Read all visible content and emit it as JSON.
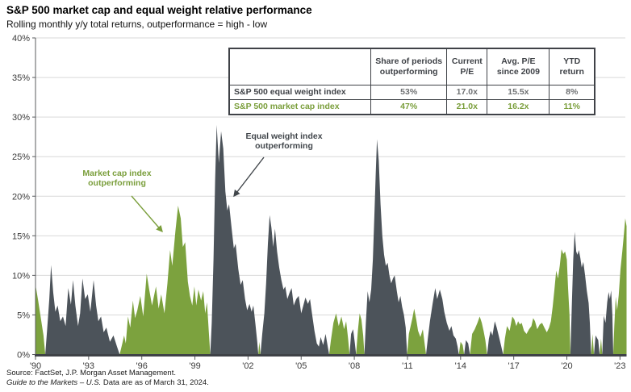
{
  "title": "S&P 500 market cap and equal weight relative performance",
  "subtitle": "Rolling monthly y/y total returns, outperformance = high - low",
  "colors": {
    "market_cap_green": "#7ca23e",
    "equal_weight_dark": "#4c535a",
    "gridline": "#d9d9d9",
    "axis_dark": "#3f4247",
    "tick_text": "#3b3b3b"
  },
  "table": {
    "headers": [
      "",
      "Share of periods outperforming",
      "Current P/E",
      "Avg. P/E since 2009",
      "YTD return"
    ],
    "rows": [
      {
        "label": "S&P 500 equal weight index",
        "values": [
          "53%",
          "17.0x",
          "15.5x",
          "8%"
        ],
        "style": "dark"
      },
      {
        "label": "S&P 500 market cap index",
        "values": [
          "47%",
          "21.0x",
          "16.2x",
          "11%"
        ],
        "style": "green"
      }
    ]
  },
  "annotations": {
    "market_cap": {
      "line1": "Market cap index",
      "line2": "outperforming"
    },
    "equal_weight": {
      "line1": "Equal weight index",
      "line2": "outperforming"
    }
  },
  "footer": {
    "line1": "Source: FactSet, J.P. Morgan Asset Management.",
    "line2_italic": "Guide to the Markets – U.S.",
    "line2_rest": " Data are as of March 31, 2024."
  },
  "chart_data": {
    "type": "area",
    "title": "S&P 500 market cap and equal weight relative performance",
    "ylabel": "Outperformance (high - low), rolling monthly y/y total return",
    "ylim": [
      0,
      40
    ],
    "grid": true,
    "y_ticks": [
      0,
      5,
      10,
      15,
      20,
      25,
      30,
      35,
      40
    ],
    "y_tick_suffix": "%",
    "x_ticks": [
      {
        "year": 1990,
        "label": "'90"
      },
      {
        "year": 1993,
        "label": "'93"
      },
      {
        "year": 1996,
        "label": "'96"
      },
      {
        "year": 1999,
        "label": "'99"
      },
      {
        "year": 2002,
        "label": "'02"
      },
      {
        "year": 2005,
        "label": "'05"
      },
      {
        "year": 2008,
        "label": "'08"
      },
      {
        "year": 2011,
        "label": "'11"
      },
      {
        "year": 2014,
        "label": "'14"
      },
      {
        "year": 2017,
        "label": "'17"
      },
      {
        "year": 2020,
        "label": "'20"
      },
      {
        "year": 2023,
        "label": "'23"
      }
    ],
    "series": [
      {
        "id": "g",
        "name": "S&P 500 market cap index outperforming",
        "color": "#7ca23e"
      },
      {
        "id": "e",
        "name": "S&P 500 equal weight index outperforming",
        "color": "#4c535a"
      }
    ],
    "points": [
      [
        1990.0,
        8.8,
        "g"
      ],
      [
        1990.15,
        6.8,
        "g"
      ],
      [
        1990.3,
        4.6,
        "g"
      ],
      [
        1990.45,
        2.4,
        "g"
      ],
      [
        1990.55,
        0,
        "g"
      ],
      [
        1990.65,
        3,
        "e"
      ],
      [
        1990.78,
        7,
        "e"
      ],
      [
        1990.88,
        11.3,
        "e"
      ],
      [
        1991.0,
        7.8,
        "e"
      ],
      [
        1991.12,
        5.4,
        "e"
      ],
      [
        1991.25,
        6.2,
        "e"
      ],
      [
        1991.4,
        4.2,
        "e"
      ],
      [
        1991.55,
        4.8,
        "e"
      ],
      [
        1991.7,
        3.6,
        "e"
      ],
      [
        1991.85,
        8.4,
        "e"
      ],
      [
        1992.0,
        6.3,
        "e"
      ],
      [
        1992.12,
        9.4,
        "e"
      ],
      [
        1992.25,
        6.2,
        "e"
      ],
      [
        1992.4,
        3.6,
        "e"
      ],
      [
        1992.52,
        5.2,
        "e"
      ],
      [
        1992.65,
        9.6,
        "e"
      ],
      [
        1992.8,
        7,
        "e"
      ],
      [
        1992.95,
        7.6,
        "e"
      ],
      [
        1993.1,
        5.4,
        "e"
      ],
      [
        1993.28,
        9.4,
        "e"
      ],
      [
        1993.42,
        6.2,
        "e"
      ],
      [
        1993.55,
        4.2,
        "e"
      ],
      [
        1993.7,
        4.8,
        "e"
      ],
      [
        1993.85,
        2.8,
        "e"
      ],
      [
        1994.0,
        3.4,
        "e"
      ],
      [
        1994.2,
        1.6,
        "e"
      ],
      [
        1994.4,
        2.4,
        "e"
      ],
      [
        1994.6,
        1,
        "e"
      ],
      [
        1994.75,
        0,
        "e"
      ],
      [
        1994.9,
        1.4,
        "g"
      ],
      [
        1995.0,
        2.4,
        "g"
      ],
      [
        1995.1,
        1.4,
        "g"
      ],
      [
        1995.22,
        4.8,
        "g"
      ],
      [
        1995.35,
        3.4,
        "g"
      ],
      [
        1995.5,
        6.8,
        "g"
      ],
      [
        1995.62,
        4.6,
        "g"
      ],
      [
        1995.75,
        5.6,
        "g"
      ],
      [
        1995.92,
        7.4,
        "g"
      ],
      [
        1996.08,
        4.8,
        "g"
      ],
      [
        1996.28,
        10.2,
        "g"
      ],
      [
        1996.42,
        8.2,
        "g"
      ],
      [
        1996.58,
        6.2,
        "g"
      ],
      [
        1996.8,
        8.6,
        "g"
      ],
      [
        1996.95,
        5.8,
        "g"
      ],
      [
        1997.1,
        7.6,
        "g"
      ],
      [
        1997.28,
        5.2,
        "g"
      ],
      [
        1997.45,
        9,
        "g"
      ],
      [
        1997.6,
        13.2,
        "g"
      ],
      [
        1997.72,
        11.2,
        "g"
      ],
      [
        1997.9,
        15.6,
        "g"
      ],
      [
        1998.05,
        18.8,
        "g"
      ],
      [
        1998.2,
        17.2,
        "g"
      ],
      [
        1998.32,
        13.6,
        "g"
      ],
      [
        1998.45,
        14.2,
        "g"
      ],
      [
        1998.6,
        9.2,
        "g"
      ],
      [
        1998.72,
        7.4,
        "g"
      ],
      [
        1998.85,
        6.2,
        "g"
      ],
      [
        1998.97,
        8.6,
        "g"
      ],
      [
        1999.08,
        6.2,
        "g"
      ],
      [
        1999.2,
        8.2,
        "g"
      ],
      [
        1999.35,
        6.8,
        "g"
      ],
      [
        1999.47,
        8,
        "g"
      ],
      [
        1999.58,
        5.2,
        "g"
      ],
      [
        1999.68,
        6.6,
        "g"
      ],
      [
        1999.78,
        3,
        "g"
      ],
      [
        1999.87,
        0,
        "g"
      ],
      [
        1999.95,
        4,
        "e"
      ],
      [
        2000.05,
        12,
        "e"
      ],
      [
        2000.14,
        22,
        "e"
      ],
      [
        2000.23,
        29,
        "e"
      ],
      [
        2000.35,
        24.2,
        "e"
      ],
      [
        2000.48,
        28.2,
        "e"
      ],
      [
        2000.6,
        26,
        "e"
      ],
      [
        2000.72,
        20.6,
        "e"
      ],
      [
        2000.83,
        18.2,
        "e"
      ],
      [
        2000.93,
        19,
        "e"
      ],
      [
        2001.08,
        15.8,
        "e"
      ],
      [
        2001.2,
        13.4,
        "e"
      ],
      [
        2001.3,
        14,
        "e"
      ],
      [
        2001.45,
        10.8,
        "e"
      ],
      [
        2001.58,
        8.8,
        "e"
      ],
      [
        2001.7,
        9.4,
        "e"
      ],
      [
        2001.83,
        7,
        "e"
      ],
      [
        2001.95,
        5.6,
        "e"
      ],
      [
        2002.08,
        6.4,
        "e"
      ],
      [
        2002.2,
        5.4,
        "e"
      ],
      [
        2002.3,
        6.2,
        "e"
      ],
      [
        2002.42,
        3.8,
        "e"
      ],
      [
        2002.52,
        1.6,
        "e"
      ],
      [
        2002.58,
        0,
        "e"
      ],
      [
        2002.64,
        1.6,
        "g"
      ],
      [
        2002.7,
        0,
        "g"
      ],
      [
        2002.8,
        2.6,
        "e"
      ],
      [
        2002.92,
        5.2,
        "e"
      ],
      [
        2003.02,
        9,
        "e"
      ],
      [
        2003.12,
        14,
        "e"
      ],
      [
        2003.22,
        17.6,
        "e"
      ],
      [
        2003.32,
        16,
        "e"
      ],
      [
        2003.42,
        13.6,
        "e"
      ],
      [
        2003.52,
        15.9,
        "e"
      ],
      [
        2003.64,
        13,
        "e"
      ],
      [
        2003.76,
        11,
        "e"
      ],
      [
        2003.88,
        9.4,
        "e"
      ],
      [
        2004.0,
        8.2,
        "e"
      ],
      [
        2004.1,
        8.6,
        "e"
      ],
      [
        2004.22,
        7,
        "e"
      ],
      [
        2004.34,
        7.8,
        "e"
      ],
      [
        2004.46,
        8.4,
        "e"
      ],
      [
        2004.58,
        6.2,
        "e"
      ],
      [
        2004.72,
        7,
        "e"
      ],
      [
        2004.86,
        7.4,
        "e"
      ],
      [
        2005.0,
        5.2,
        "e"
      ],
      [
        2005.1,
        6,
        "e"
      ],
      [
        2005.24,
        7.2,
        "e"
      ],
      [
        2005.38,
        6.4,
        "e"
      ],
      [
        2005.5,
        7,
        "e"
      ],
      [
        2005.62,
        5,
        "e"
      ],
      [
        2005.75,
        3,
        "e"
      ],
      [
        2005.88,
        1.4,
        "e"
      ],
      [
        2006.0,
        1,
        "e"
      ],
      [
        2006.1,
        2.2,
        "e"
      ],
      [
        2006.24,
        1.2,
        "e"
      ],
      [
        2006.38,
        2.6,
        "e"
      ],
      [
        2006.5,
        1,
        "e"
      ],
      [
        2006.58,
        0,
        "e"
      ],
      [
        2006.68,
        1.8,
        "g"
      ],
      [
        2006.82,
        4,
        "g"
      ],
      [
        2006.97,
        5.2,
        "g"
      ],
      [
        2007.12,
        3.6,
        "g"
      ],
      [
        2007.27,
        4.8,
        "g"
      ],
      [
        2007.42,
        3.2,
        "g"
      ],
      [
        2007.54,
        4.2,
        "g"
      ],
      [
        2007.65,
        2,
        "g"
      ],
      [
        2007.73,
        0,
        "g"
      ],
      [
        2007.82,
        2.6,
        "e"
      ],
      [
        2007.93,
        3.2,
        "e"
      ],
      [
        2008.03,
        1.4,
        "e"
      ],
      [
        2008.1,
        0,
        "e"
      ],
      [
        2008.2,
        3,
        "g"
      ],
      [
        2008.3,
        5.2,
        "g"
      ],
      [
        2008.4,
        4.4,
        "g"
      ],
      [
        2008.5,
        2.4,
        "g"
      ],
      [
        2008.57,
        0,
        "g"
      ],
      [
        2008.65,
        4,
        "e"
      ],
      [
        2008.75,
        8,
        "e"
      ],
      [
        2008.85,
        6.6,
        "e"
      ],
      [
        2008.95,
        8.2,
        "e"
      ],
      [
        2009.05,
        12,
        "e"
      ],
      [
        2009.14,
        18,
        "e"
      ],
      [
        2009.21,
        23,
        "e"
      ],
      [
        2009.28,
        27.2,
        "e"
      ],
      [
        2009.38,
        24.5,
        "e"
      ],
      [
        2009.48,
        19,
        "e"
      ],
      [
        2009.58,
        15,
        "e"
      ],
      [
        2009.68,
        12.6,
        "e"
      ],
      [
        2009.78,
        11.2,
        "e"
      ],
      [
        2009.88,
        11.6,
        "e"
      ],
      [
        2009.98,
        10,
        "e"
      ],
      [
        2010.08,
        9,
        "e"
      ],
      [
        2010.18,
        9.6,
        "e"
      ],
      [
        2010.28,
        10,
        "e"
      ],
      [
        2010.4,
        8,
        "e"
      ],
      [
        2010.5,
        6.6,
        "e"
      ],
      [
        2010.6,
        7.4,
        "e"
      ],
      [
        2010.7,
        6,
        "e"
      ],
      [
        2010.8,
        5,
        "e"
      ],
      [
        2010.9,
        3.4,
        "e"
      ],
      [
        2010.98,
        0,
        "e"
      ],
      [
        2011.08,
        2.6,
        "g"
      ],
      [
        2011.18,
        3.6,
        "g"
      ],
      [
        2011.28,
        4.6,
        "g"
      ],
      [
        2011.38,
        5.8,
        "g"
      ],
      [
        2011.5,
        4.4,
        "g"
      ],
      [
        2011.6,
        3,
        "g"
      ],
      [
        2011.73,
        2.2,
        "g"
      ],
      [
        2011.87,
        3.2,
        "g"
      ],
      [
        2011.97,
        1.4,
        "g"
      ],
      [
        2012.05,
        0,
        "g"
      ],
      [
        2012.15,
        2,
        "e"
      ],
      [
        2012.27,
        4.2,
        "e"
      ],
      [
        2012.42,
        6.4,
        "e"
      ],
      [
        2012.57,
        8.4,
        "e"
      ],
      [
        2012.68,
        7,
        "e"
      ],
      [
        2012.83,
        8.2,
        "e"
      ],
      [
        2012.97,
        7,
        "e"
      ],
      [
        2013.08,
        5.4,
        "e"
      ],
      [
        2013.22,
        4,
        "e"
      ],
      [
        2013.37,
        3,
        "e"
      ],
      [
        2013.48,
        3.6,
        "e"
      ],
      [
        2013.6,
        2.4,
        "e"
      ],
      [
        2013.73,
        2,
        "e"
      ],
      [
        2013.83,
        1,
        "e"
      ],
      [
        2013.9,
        0,
        "e"
      ],
      [
        2014.0,
        1.6,
        "g"
      ],
      [
        2014.12,
        1.2,
        "g"
      ],
      [
        2014.2,
        0,
        "g"
      ],
      [
        2014.3,
        1.8,
        "e"
      ],
      [
        2014.43,
        1.4,
        "e"
      ],
      [
        2014.53,
        0,
        "e"
      ],
      [
        2014.65,
        2.6,
        "g"
      ],
      [
        2014.8,
        3.2,
        "g"
      ],
      [
        2014.95,
        4,
        "g"
      ],
      [
        2015.08,
        4.8,
        "g"
      ],
      [
        2015.2,
        4,
        "g"
      ],
      [
        2015.3,
        3,
        "g"
      ],
      [
        2015.4,
        1.8,
        "g"
      ],
      [
        2015.5,
        0,
        "g"
      ],
      [
        2015.6,
        2,
        "e"
      ],
      [
        2015.7,
        3,
        "e"
      ],
      [
        2015.8,
        2.4,
        "e"
      ],
      [
        2015.93,
        4.2,
        "e"
      ],
      [
        2016.04,
        3.4,
        "e"
      ],
      [
        2016.15,
        2.4,
        "e"
      ],
      [
        2016.28,
        1.2,
        "e"
      ],
      [
        2016.4,
        0,
        "e"
      ],
      [
        2016.5,
        2,
        "g"
      ],
      [
        2016.62,
        3.6,
        "g"
      ],
      [
        2016.77,
        3,
        "g"
      ],
      [
        2016.92,
        4.8,
        "g"
      ],
      [
        2017.04,
        4.4,
        "g"
      ],
      [
        2017.15,
        3.6,
        "g"
      ],
      [
        2017.25,
        4.2,
        "g"
      ],
      [
        2017.35,
        3.8,
        "g"
      ],
      [
        2017.45,
        4,
        "g"
      ],
      [
        2017.58,
        3,
        "g"
      ],
      [
        2017.72,
        2.6,
        "g"
      ],
      [
        2017.87,
        3.2,
        "g"
      ],
      [
        2018.0,
        3.6,
        "g"
      ],
      [
        2018.1,
        4.6,
        "g"
      ],
      [
        2018.2,
        4.2,
        "g"
      ],
      [
        2018.33,
        3.2,
        "g"
      ],
      [
        2018.47,
        3.8,
        "g"
      ],
      [
        2018.6,
        4,
        "g"
      ],
      [
        2018.73,
        3.4,
        "g"
      ],
      [
        2018.87,
        2.8,
        "g"
      ],
      [
        2019.0,
        3.4,
        "g"
      ],
      [
        2019.1,
        4.2,
        "g"
      ],
      [
        2019.2,
        6,
        "g"
      ],
      [
        2019.3,
        8.2,
        "g"
      ],
      [
        2019.4,
        10.6,
        "g"
      ],
      [
        2019.5,
        9.6,
        "g"
      ],
      [
        2019.6,
        11.2,
        "g"
      ],
      [
        2019.7,
        13.3,
        "g"
      ],
      [
        2019.8,
        12.7,
        "g"
      ],
      [
        2019.9,
        13,
        "g"
      ],
      [
        2020.0,
        12,
        "g"
      ],
      [
        2020.07,
        8.4,
        "g"
      ],
      [
        2020.15,
        5,
        "g"
      ],
      [
        2020.2,
        0,
        "g"
      ],
      [
        2020.28,
        6,
        "e"
      ],
      [
        2020.36,
        12,
        "e"
      ],
      [
        2020.44,
        15.5,
        "e"
      ],
      [
        2020.53,
        13,
        "e"
      ],
      [
        2020.6,
        12.6,
        "e"
      ],
      [
        2020.68,
        13.2,
        "e"
      ],
      [
        2020.76,
        12.2,
        "e"
      ],
      [
        2020.84,
        11,
        "e"
      ],
      [
        2020.93,
        11.7,
        "e"
      ],
      [
        2021.03,
        10,
        "e"
      ],
      [
        2021.13,
        8,
        "e"
      ],
      [
        2021.23,
        6.5,
        "e"
      ],
      [
        2021.3,
        4,
        "e"
      ],
      [
        2021.37,
        0,
        "e"
      ],
      [
        2021.45,
        2.6,
        "g"
      ],
      [
        2021.53,
        0,
        "g"
      ],
      [
        2021.62,
        2.4,
        "e"
      ],
      [
        2021.77,
        1.8,
        "e"
      ],
      [
        2021.85,
        0,
        "e"
      ],
      [
        2021.93,
        2,
        "g"
      ],
      [
        2022.0,
        0,
        "g"
      ],
      [
        2022.08,
        4.9,
        "e"
      ],
      [
        2022.18,
        4,
        "e"
      ],
      [
        2022.28,
        6.6,
        "e"
      ],
      [
        2022.36,
        7.9,
        "e"
      ],
      [
        2022.43,
        7,
        "e"
      ],
      [
        2022.5,
        8.1,
        "e"
      ],
      [
        2022.57,
        5,
        "e"
      ],
      [
        2022.62,
        0,
        "e"
      ],
      [
        2022.68,
        3.6,
        "g"
      ],
      [
        2022.76,
        7.3,
        "g"
      ],
      [
        2022.84,
        5.6,
        "g"
      ],
      [
        2022.93,
        7.5,
        "g"
      ],
      [
        2023.03,
        10.8,
        "g"
      ],
      [
        2023.13,
        13,
        "g"
      ],
      [
        2023.22,
        15.2,
        "g"
      ],
      [
        2023.3,
        17.2,
        "g"
      ],
      [
        2023.37,
        16.2,
        "g"
      ]
    ]
  }
}
